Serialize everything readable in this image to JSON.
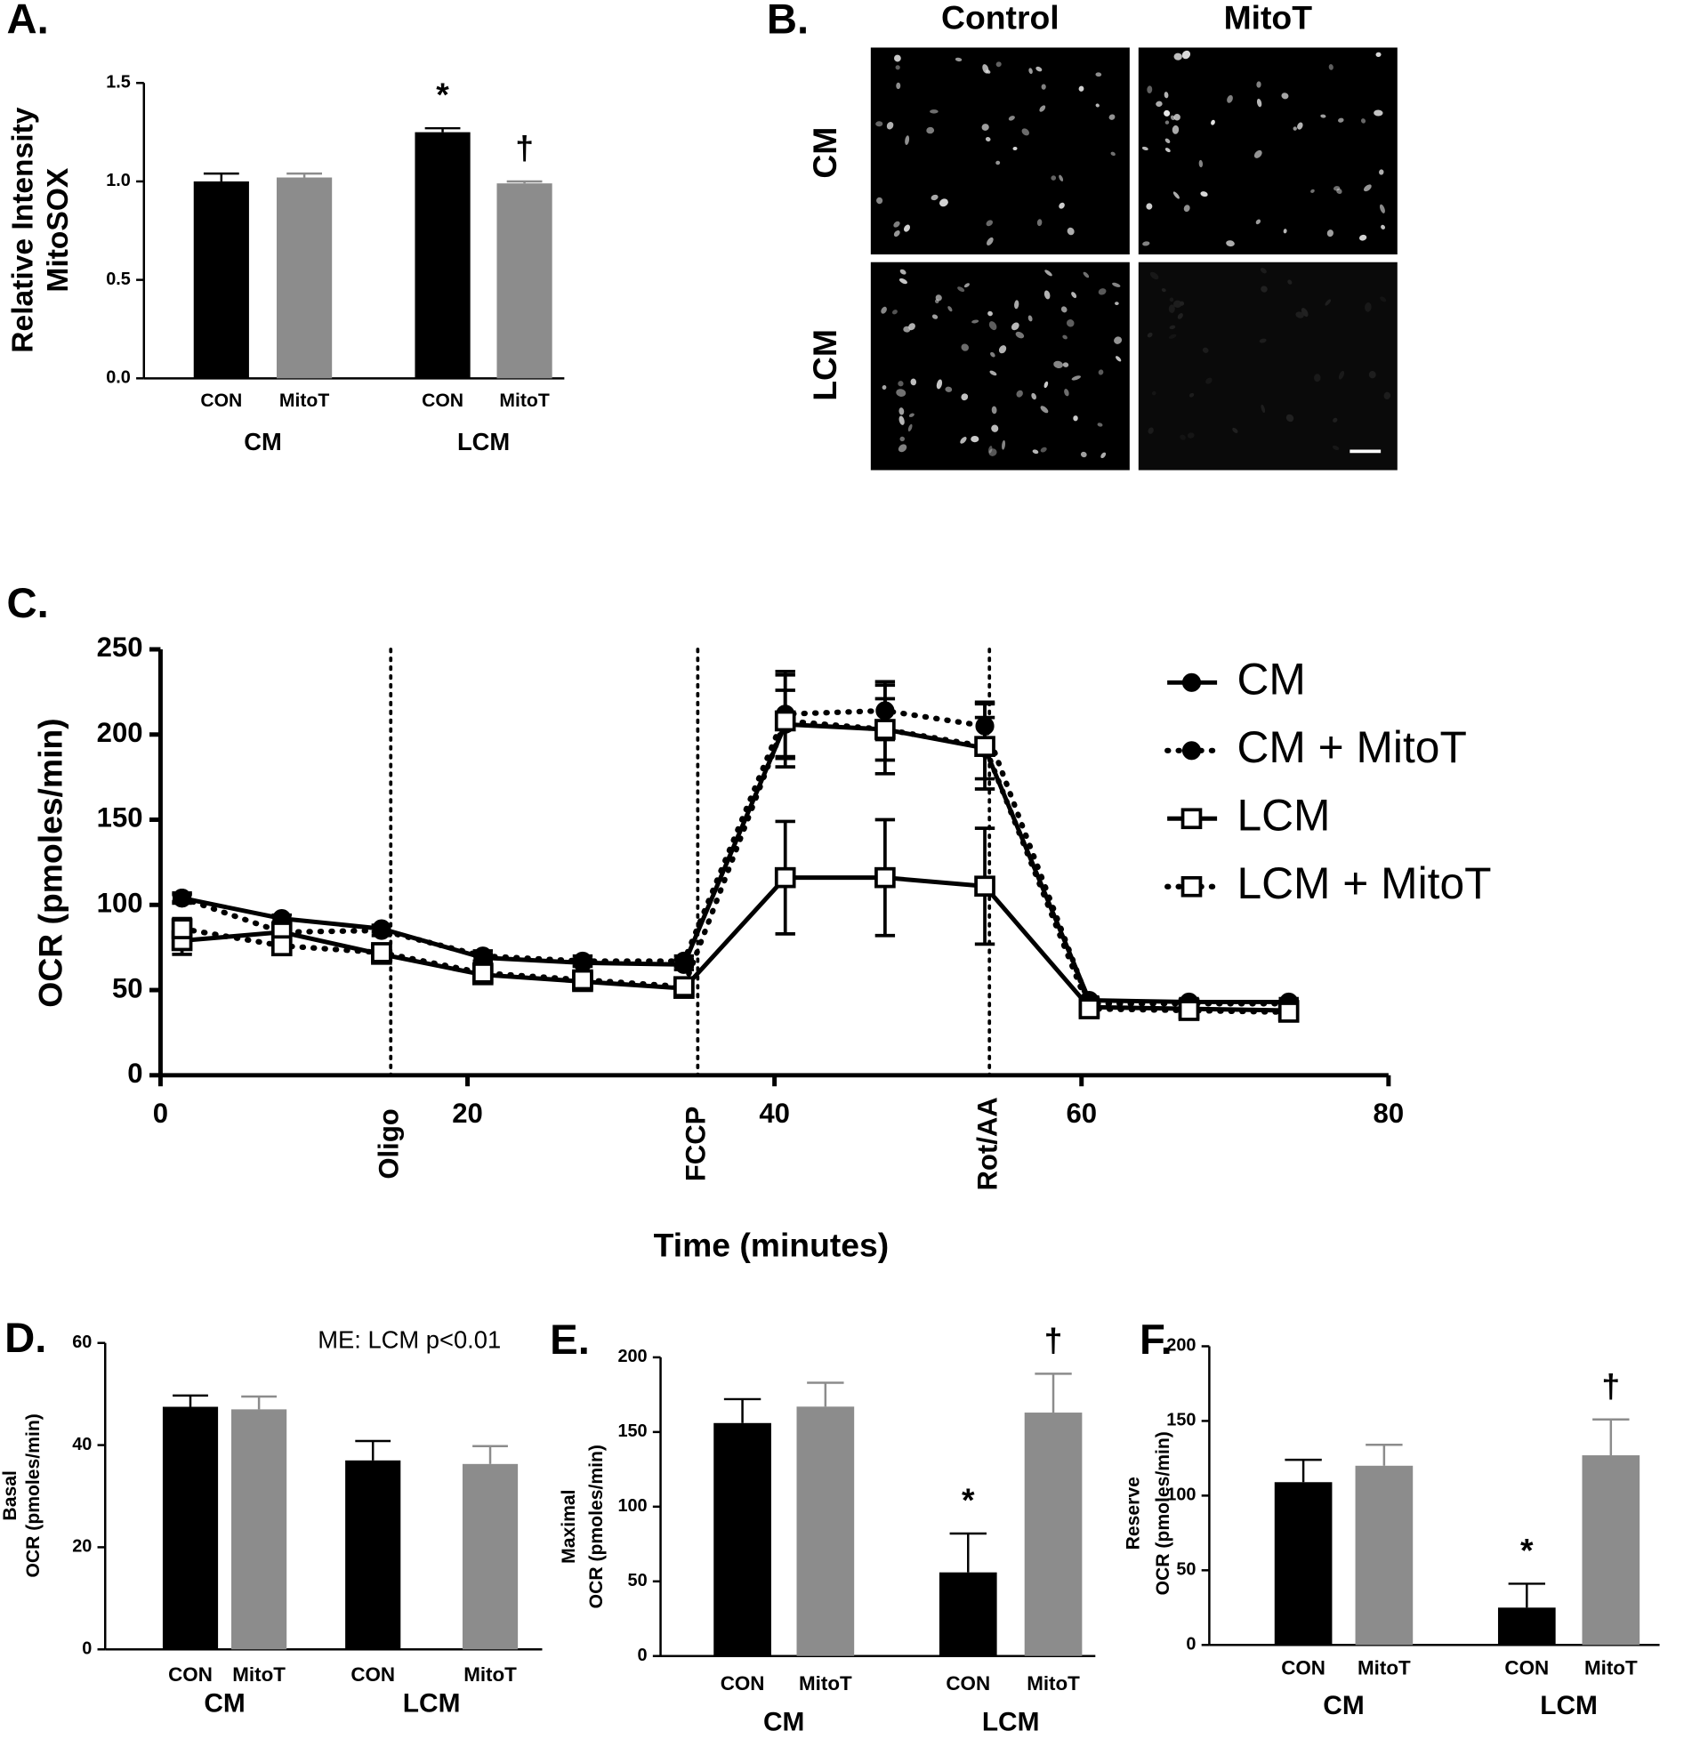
{
  "chart_data": [
    {
      "type": "bar",
      "label": "A.",
      "ylabel": [
        "Relative Intensity",
        "MitoSOX"
      ],
      "categories": [
        "CON",
        "MitoT",
        "CON",
        "MitoT"
      ],
      "groups": [
        "CM",
        "LCM"
      ],
      "values": [
        1.0,
        1.02,
        1.25,
        0.99
      ],
      "errors": [
        0.04,
        0.02,
        0.02,
        0.01
      ],
      "annotations": [
        null,
        null,
        "*",
        "†"
      ],
      "colors": [
        "#000000",
        "#8c8c8c",
        "#000000",
        "#8c8c8c"
      ],
      "ylim": [
        0,
        1.5
      ],
      "yticks": [
        {
          "value": 0,
          "label": "0.0"
        },
        0.5,
        {
          "value": 1,
          "label": "1.0"
        },
        1.5
      ]
    },
    {
      "type": "line",
      "label": "C.",
      "xlabel": "Time (minutes)",
      "ylabel": "OCR (pmoles/min)",
      "x": [
        1.4,
        7.9,
        14.4,
        21,
        27.5,
        34.1,
        40.7,
        47.2,
        53.7,
        60.5,
        67,
        73.5
      ],
      "series": [
        {
          "name": "CM",
          "color": "#000000",
          "dash": "solid",
          "marker": "circle",
          "filled": true,
          "values": [
            104,
            92,
            86,
            69,
            66,
            65,
            206,
            203,
            192,
            44,
            43,
            43
          ],
          "errors": [
            2,
            2,
            2,
            2,
            2,
            3,
            20,
            18,
            18,
            2,
            2,
            2
          ]
        },
        {
          "name": "CM + MitoT",
          "color": "#000000",
          "dash": "dotted",
          "marker": "circle",
          "filled": true,
          "values": [
            104,
            84,
            85,
            70,
            67,
            67,
            212,
            214,
            205,
            42,
            42,
            42
          ],
          "errors": [
            3,
            3,
            3,
            3,
            3,
            3,
            25,
            17,
            14,
            2,
            2,
            2
          ]
        },
        {
          "name": "LCM",
          "color": "#000000",
          "dash": "solid",
          "marker": "square",
          "filled": false,
          "values": [
            79,
            84,
            71,
            59,
            55,
            51,
            116,
            116,
            111,
            40,
            39,
            38
          ],
          "errors": [
            8,
            5,
            4,
            3,
            3,
            3,
            33,
            34,
            34,
            2,
            2,
            2
          ]
        },
        {
          "name": "LCM + MitoT",
          "color": "#000000",
          "dash": "dotted",
          "marker": "square",
          "filled": false,
          "values": [
            86,
            76,
            72,
            60,
            56,
            52,
            208,
            203,
            193,
            39,
            38,
            37
          ],
          "errors": [
            6,
            4,
            3,
            3,
            3,
            3,
            27,
            26,
            25,
            2,
            2,
            2
          ]
        }
      ],
      "events": [
        {
          "x": 15,
          "label": "Oligo"
        },
        {
          "x": 35,
          "label": "FCCP"
        },
        {
          "x": 54,
          "label": "Rot/AA"
        }
      ],
      "xlim": [
        0,
        80
      ],
      "xticks": [
        0,
        20,
        40,
        60,
        80
      ],
      "ylim": [
        0,
        250
      ],
      "yticks": [
        0,
        50,
        100,
        150,
        200,
        250
      ],
      "legend": "upper right"
    },
    {
      "type": "bar",
      "label": "D.",
      "ylabel": [
        "Basal",
        "OCR (pmoles/min)"
      ],
      "note": "ME: LCM p<0.01",
      "categories": [
        "CON",
        "MitoT",
        "CON",
        "MitoT"
      ],
      "groups": [
        "CM",
        "LCM"
      ],
      "values": [
        47.5,
        47,
        37,
        36.3
      ],
      "errors": [
        2.2,
        2.5,
        3.8,
        3.5
      ],
      "annotations": [
        null,
        null,
        null,
        null
      ],
      "colors": [
        "#000000",
        "#8c8c8c",
        "#000000",
        "#8c8c8c"
      ],
      "ylim": [
        0,
        60
      ],
      "yticks": [
        0,
        20,
        40,
        60
      ]
    },
    {
      "type": "bar",
      "label": "E.",
      "ylabel": [
        "Maximal",
        "OCR (pmoles/min)"
      ],
      "categories": [
        "CON",
        "MitoT",
        "CON",
        "MitoT"
      ],
      "groups": [
        "CM",
        "LCM"
      ],
      "values": [
        156,
        167,
        56,
        163
      ],
      "errors": [
        16,
        16,
        26,
        26
      ],
      "annotations": [
        null,
        null,
        "*",
        "†"
      ],
      "colors": [
        "#000000",
        "#8c8c8c",
        "#000000",
        "#8c8c8c"
      ],
      "ylim": [
        0,
        200
      ],
      "yticks": [
        0,
        50,
        100,
        150,
        200
      ]
    },
    {
      "type": "bar",
      "label": "F.",
      "ylabel": [
        "Reserve",
        "OCR (pmoles/min)"
      ],
      "categories": [
        "CON",
        "MitoT",
        "CON",
        "MitoT"
      ],
      "groups": [
        "CM",
        "LCM"
      ],
      "values": [
        109,
        120,
        25,
        127
      ],
      "errors": [
        15,
        14,
        16,
        24
      ],
      "annotations": [
        null,
        null,
        "*",
        "†"
      ],
      "colors": [
        "#000000",
        "#8c8c8c",
        "#000000",
        "#8c8c8c"
      ],
      "ylim": [
        0,
        200
      ],
      "yticks": [
        0,
        50,
        100,
        150,
        200
      ]
    }
  ],
  "panel_b": {
    "label": "B.",
    "columns": [
      "Control",
      "MitoT"
    ],
    "rows": [
      "CM",
      "LCM"
    ]
  }
}
